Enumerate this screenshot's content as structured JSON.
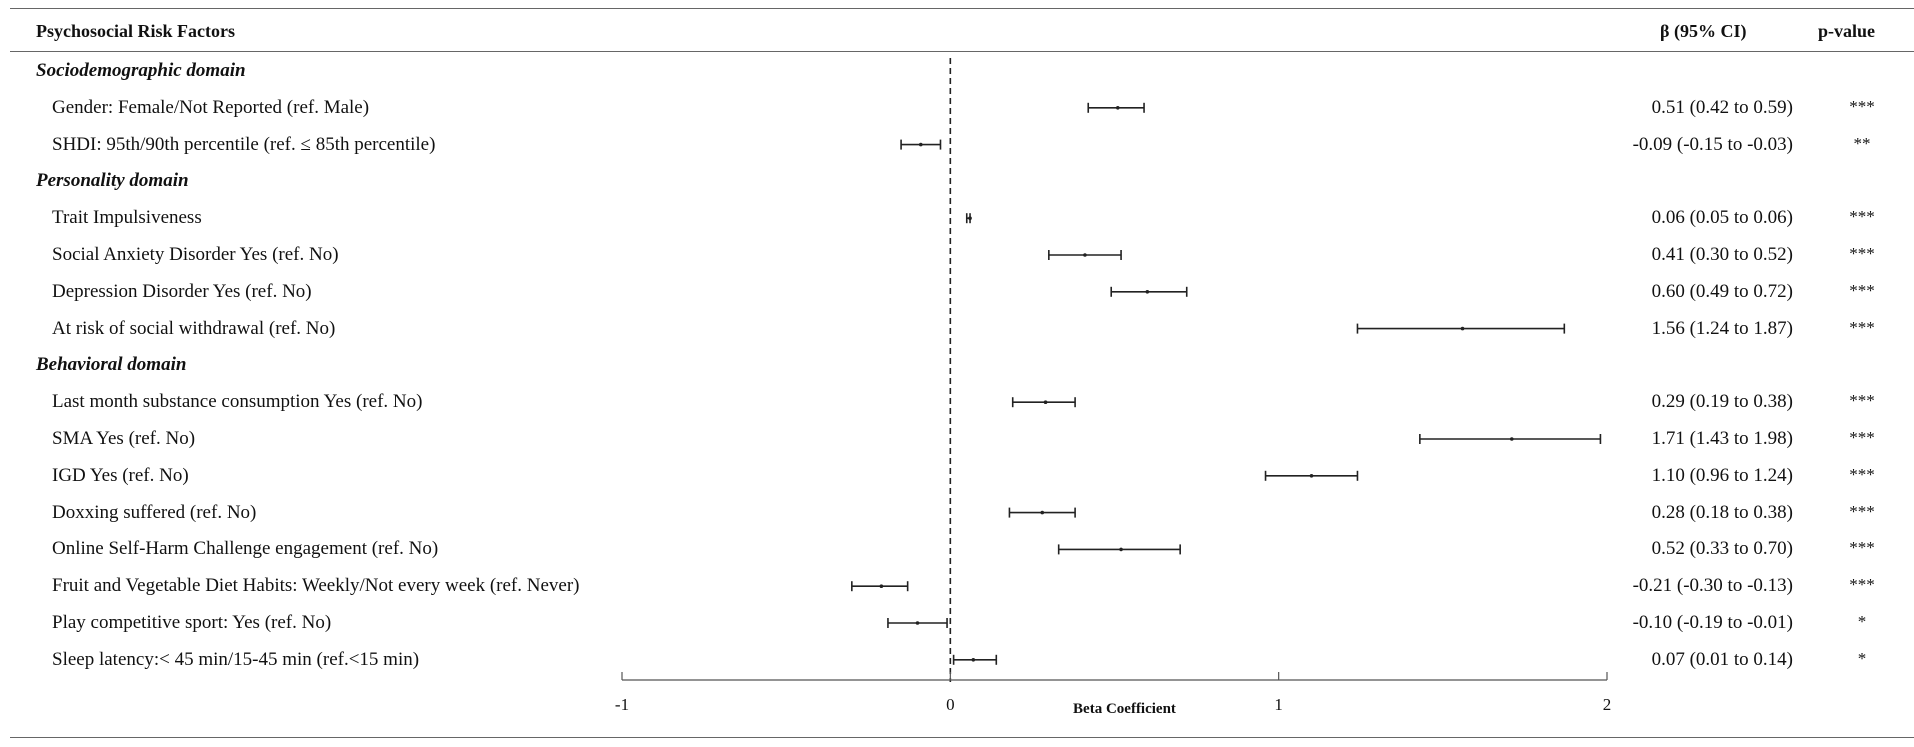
{
  "header": {
    "factor_col": "Psychosocial Risk Factors",
    "ci_col": "β (95% CI)",
    "p_col": "p-value"
  },
  "rows": [
    {
      "type": "domain",
      "label": "Sociodemographic domain"
    },
    {
      "type": "item",
      "label": "Gender: Female/Not Reported (ref. Male)",
      "ci_text": "0.51 (0.42 to 0.59)",
      "sig": "***"
    },
    {
      "type": "item",
      "label": "SHDI: 95th/90th percentile (ref. ≤ 85th percentile)",
      "ci_text": "-0.09 (-0.15 to -0.03)",
      "sig": "**"
    },
    {
      "type": "domain",
      "label": "Personality domain"
    },
    {
      "type": "item",
      "label": "Trait Impulsiveness",
      "ci_text": "0.06 (0.05 to 0.06)",
      "sig": "***"
    },
    {
      "type": "item",
      "label": "Social Anxiety Disorder Yes (ref. No)",
      "ci_text": "0.41 (0.30 to 0.52)",
      "sig": "***"
    },
    {
      "type": "item",
      "label": "Depression Disorder Yes (ref. No)",
      "ci_text": "0.60 (0.49 to 0.72)",
      "sig": "***"
    },
    {
      "type": "item",
      "label": "At risk of social withdrawal (ref. No)",
      "ci_text": "1.56 (1.24 to 1.87)",
      "sig": "***"
    },
    {
      "type": "domain",
      "label": "Behavioral domain"
    },
    {
      "type": "item",
      "label": "Last month substance consumption Yes (ref. No)",
      "ci_text": "0.29 (0.19 to 0.38)",
      "sig": "***"
    },
    {
      "type": "item",
      "label": "SMA Yes (ref. No)",
      "ci_text": "1.71 (1.43 to 1.98)",
      "sig": "***"
    },
    {
      "type": "item",
      "label": "IGD Yes (ref. No)",
      "ci_text": "1.10 (0.96 to 1.24)",
      "sig": "***"
    },
    {
      "type": "item",
      "label": "Doxxing suffered  (ref. No)",
      "ci_text": "0.28 (0.18 to 0.38)",
      "sig": "***"
    },
    {
      "type": "item",
      "label": "Online Self-Harm Challenge engagement (ref. No)",
      "ci_text": "0.52 (0.33 to 0.70)",
      "sig": "***"
    },
    {
      "type": "item",
      "label": "Fruit and Vegetable Diet Habits: Weekly/Not every week (ref. Never)",
      "ci_text": "-0.21 (-0.30 to -0.13)",
      "sig": "***"
    },
    {
      "type": "item",
      "label": "Play competitive sport: Yes (ref. No)",
      "ci_text": "-0.10 (-0.19 to -0.01)",
      "sig": "*"
    },
    {
      "type": "item",
      "label": "Sleep latency:< 45 min/15-45 min (ref.<15 min)",
      "ci_text": "0.07 (0.01 to 0.14)",
      "sig": "*"
    }
  ],
  "chart_data": {
    "type": "forest",
    "xlabel": "Beta Coefficient",
    "xlim": [
      -1,
      2
    ],
    "xticks": [
      -1,
      0,
      1,
      2
    ],
    "xtick_labels": [
      "-1",
      "0",
      "1",
      "2"
    ],
    "reference_line": 0,
    "reference_line_style": "dashed",
    "points": [
      {
        "label": "Gender: Female/Not Reported (ref. Male)",
        "beta": 0.51,
        "lo": 0.42,
        "hi": 0.59
      },
      {
        "label": "SHDI: 95th/90th percentile (ref. ≤ 85th percentile)",
        "beta": -0.09,
        "lo": -0.15,
        "hi": -0.03
      },
      {
        "label": "Trait Impulsiveness",
        "beta": 0.06,
        "lo": 0.05,
        "hi": 0.06
      },
      {
        "label": "Social Anxiety Disorder Yes (ref. No)",
        "beta": 0.41,
        "lo": 0.3,
        "hi": 0.52
      },
      {
        "label": "Depression Disorder Yes (ref. No)",
        "beta": 0.6,
        "lo": 0.49,
        "hi": 0.72
      },
      {
        "label": "At risk of social withdrawal (ref. No)",
        "beta": 1.56,
        "lo": 1.24,
        "hi": 1.87
      },
      {
        "label": "Last month substance consumption Yes (ref. No)",
        "beta": 0.29,
        "lo": 0.19,
        "hi": 0.38
      },
      {
        "label": "SMA Yes (ref. No)",
        "beta": 1.71,
        "lo": 1.43,
        "hi": 1.98
      },
      {
        "label": "IGD Yes (ref. No)",
        "beta": 1.1,
        "lo": 0.96,
        "hi": 1.24
      },
      {
        "label": "Doxxing suffered  (ref. No)",
        "beta": 0.28,
        "lo": 0.18,
        "hi": 0.38
      },
      {
        "label": "Online Self-Harm Challenge engagement (ref. No)",
        "beta": 0.52,
        "lo": 0.33,
        "hi": 0.7
      },
      {
        "label": "Fruit and Vegetable Diet Habits: Weekly/Not every week (ref. Never)",
        "beta": -0.21,
        "lo": -0.3,
        "hi": -0.13
      },
      {
        "label": "Play competitive sport: Yes (ref. No)",
        "beta": -0.1,
        "lo": -0.19,
        "hi": -0.01
      },
      {
        "label": "Sleep latency:< 45 min/15-45 min (ref.<15 min)",
        "beta": 0.07,
        "lo": 0.01,
        "hi": 0.14
      }
    ]
  }
}
